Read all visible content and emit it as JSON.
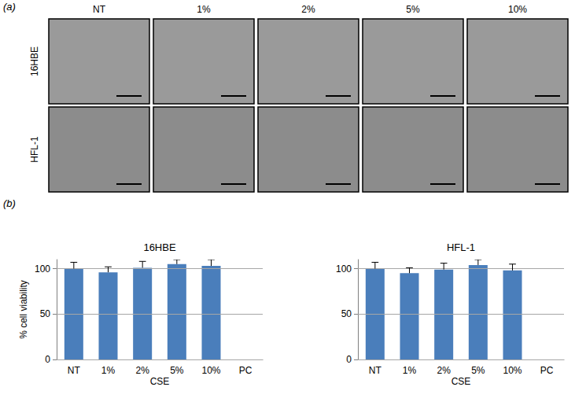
{
  "figure": {
    "panel_labels": [
      "(a)",
      "(b)"
    ],
    "micrographs": {
      "columns": [
        "NT",
        "1%",
        "2%",
        "5%",
        "10%"
      ],
      "rows": [
        "16HBE",
        "HFL-1"
      ]
    }
  },
  "chart_data": [
    {
      "type": "bar",
      "title": "16HBE",
      "x_label": "CSE",
      "y_label": "% cell viability",
      "categories": [
        "NT",
        "1%",
        "2%",
        "5%",
        "10%",
        "PC"
      ],
      "values": [
        100,
        96,
        101,
        105,
        103,
        0
      ],
      "errors": [
        7,
        6,
        7,
        5,
        7,
        null
      ],
      "color": "#4a7ebb",
      "ylim": [
        0,
        110
      ],
      "yticks": [
        0,
        50,
        100
      ],
      "grid": true
    },
    {
      "type": "bar",
      "title": "HFL-1",
      "x_label": "CSE",
      "categories": [
        "NT",
        "1%",
        "2%",
        "5%",
        "10%",
        "PC"
      ],
      "values": [
        100,
        95,
        99,
        104,
        98,
        0
      ],
      "errors": [
        7,
        6,
        7,
        6,
        7,
        null
      ],
      "color": "#4a7ebb",
      "ylim": [
        0,
        110
      ],
      "yticks": [
        0,
        50,
        100
      ],
      "grid": true
    }
  ]
}
